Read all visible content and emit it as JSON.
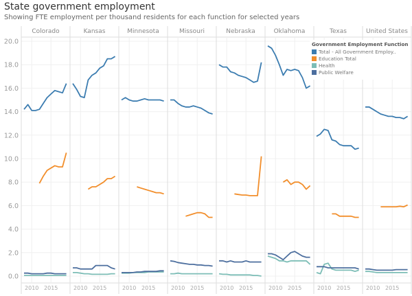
{
  "title": "State government employment",
  "subtitle": "Showing FTE employment per thousand residents  for each function for selected years",
  "chart_data": {
    "type": "line",
    "title": "State government employment",
    "subtitle": "Showing FTE employment per thousand residents  for each function for selected years",
    "panels": [
      "Colorado",
      "Kansas",
      "Minnesota",
      "Missouri",
      "Nebraska",
      "Oklahoma",
      "Texas",
      "United States"
    ],
    "x_tick_labels": [
      "2010",
      "2015"
    ],
    "y_ticks": [
      "0.0",
      "2.0",
      "4.0",
      "6.0",
      "8.0",
      "10.0",
      "12.0",
      "14.0",
      "16.0",
      "18.0",
      "20.0"
    ],
    "ylim": [
      0,
      20
    ],
    "grid": true,
    "legend_title": "Government Employment Function",
    "legend_position": "top-right",
    "years": [
      2008,
      2009,
      2010,
      2011,
      2012,
      2013,
      2014,
      2015,
      2016,
      2017,
      2018,
      2019
    ],
    "series_meta": [
      {
        "key": "total",
        "name": "Total - All Government Employ..",
        "color": "#3b7cb0"
      },
      {
        "key": "education",
        "name": "Education Total",
        "color": "#f28e2b"
      },
      {
        "key": "health",
        "name": "Health",
        "color": "#7cbdb6"
      },
      {
        "key": "welfare",
        "name": "Public Welfare",
        "color": "#4c6e9e"
      }
    ],
    "data": {
      "Colorado": {
        "total": [
          14.2,
          14.6,
          14.1,
          14.1,
          14.2,
          14.7,
          15.2,
          15.5,
          15.8,
          15.7,
          15.6,
          16.4
        ],
        "education": [
          null,
          null,
          null,
          null,
          7.9,
          8.5,
          9.0,
          9.2,
          9.4,
          9.3,
          9.3,
          10.5
        ],
        "health": [
          0.05,
          0.05,
          0.05,
          0.05,
          0.05,
          0.05,
          0.05,
          0.05,
          0.05,
          0.05,
          0.05,
          0.05
        ],
        "welfare": [
          0.25,
          0.25,
          0.2,
          0.2,
          0.2,
          0.2,
          0.25,
          0.25,
          0.2,
          0.2,
          0.2,
          0.2
        ]
      },
      "Kansas": {
        "total": [
          16.4,
          15.9,
          15.3,
          15.2,
          16.7,
          17.1,
          17.3,
          17.7,
          17.9,
          18.5,
          18.5,
          18.7
        ],
        "education": [
          null,
          null,
          null,
          null,
          7.4,
          7.6,
          7.6,
          7.8,
          8.0,
          8.3,
          8.3,
          8.5
        ],
        "health": [
          0.3,
          0.3,
          0.25,
          0.2,
          0.2,
          0.15,
          0.15,
          0.15,
          0.15,
          0.15,
          0.2,
          0.2
        ],
        "welfare": [
          0.7,
          0.7,
          0.6,
          0.6,
          0.6,
          0.6,
          0.9,
          0.9,
          0.9,
          0.9,
          0.7,
          0.6
        ]
      },
      "Minnesota": {
        "total": [
          15.0,
          15.2,
          15.0,
          14.9,
          14.9,
          15.0,
          15.1,
          15.0,
          15.0,
          15.0,
          15.0,
          14.9
        ],
        "education": [
          null,
          null,
          null,
          null,
          7.6,
          7.5,
          7.4,
          7.3,
          7.2,
          7.1,
          7.1,
          7.0
        ],
        "health": [
          0.25,
          0.25,
          0.25,
          0.3,
          0.3,
          0.3,
          0.3,
          0.35,
          0.35,
          0.35,
          0.35,
          0.35
        ],
        "welfare": [
          0.3,
          0.3,
          0.3,
          0.3,
          0.35,
          0.35,
          0.4,
          0.4,
          0.4,
          0.4,
          0.45,
          0.45
        ]
      },
      "Missouri": {
        "total": [
          15.0,
          15.0,
          14.7,
          14.5,
          14.4,
          14.4,
          14.5,
          14.4,
          14.3,
          14.1,
          13.9,
          13.8
        ],
        "education": [
          null,
          null,
          null,
          null,
          5.1,
          5.2,
          5.3,
          5.4,
          5.4,
          5.3,
          5.0,
          5.0
        ],
        "health": [
          0.2,
          0.2,
          0.25,
          0.2,
          0.2,
          0.2,
          0.2,
          0.2,
          0.2,
          0.2,
          0.2,
          0.2
        ],
        "welfare": [
          1.3,
          1.25,
          1.15,
          1.1,
          1.05,
          1.0,
          1.0,
          0.95,
          0.95,
          0.9,
          0.9,
          0.85
        ]
      },
      "Nebraska": {
        "total": [
          18.0,
          17.8,
          17.8,
          17.4,
          17.3,
          17.1,
          17.0,
          16.9,
          16.7,
          16.5,
          16.6,
          18.2
        ],
        "education": [
          null,
          null,
          null,
          null,
          7.0,
          6.95,
          6.9,
          6.9,
          6.85,
          6.85,
          6.85,
          10.2
        ],
        "health": [
          0.2,
          0.15,
          0.15,
          0.1,
          0.1,
          0.1,
          0.1,
          0.1,
          0.1,
          0.05,
          0.05,
          0.0
        ],
        "welfare": [
          1.3,
          1.3,
          1.2,
          1.3,
          1.2,
          1.2,
          1.2,
          1.3,
          1.2,
          1.2,
          1.2,
          1.2
        ]
      },
      "Oklahoma": {
        "total": [
          19.6,
          19.4,
          18.8,
          18.0,
          17.1,
          17.6,
          17.5,
          17.6,
          17.5,
          16.9,
          16.0,
          16.2
        ],
        "education": [
          null,
          null,
          null,
          null,
          8.0,
          8.2,
          7.8,
          8.0,
          8.0,
          7.8,
          7.4,
          7.7
        ],
        "health": [
          1.7,
          1.6,
          1.5,
          1.3,
          1.3,
          1.2,
          1.3,
          1.3,
          1.3,
          1.3,
          1.3,
          1.0
        ],
        "welfare": [
          1.9,
          1.9,
          1.8,
          1.6,
          1.4,
          1.7,
          2.0,
          2.1,
          1.9,
          1.7,
          1.6,
          1.6
        ]
      },
      "Texas": {
        "total": [
          11.9,
          12.1,
          12.5,
          12.4,
          11.6,
          11.5,
          11.2,
          11.1,
          11.1,
          11.1,
          10.8,
          10.9
        ],
        "education": [
          null,
          null,
          null,
          null,
          5.3,
          5.3,
          5.1,
          5.1,
          5.1,
          5.1,
          5.0,
          5.0
        ],
        "health": [
          0.3,
          0.2,
          1.0,
          1.1,
          0.6,
          0.5,
          0.5,
          0.5,
          0.5,
          0.5,
          0.4,
          0.5
        ],
        "welfare": [
          0.8,
          0.8,
          0.8,
          0.7,
          0.7,
          0.7,
          0.7,
          0.7,
          0.7,
          0.7,
          0.7,
          0.6
        ]
      },
      "United States": {
        "total": [
          14.4,
          14.4,
          14.2,
          14.0,
          13.8,
          13.7,
          13.6,
          13.6,
          13.5,
          13.5,
          13.4,
          13.6
        ],
        "education": [
          null,
          null,
          null,
          null,
          5.9,
          5.9,
          5.9,
          5.9,
          5.9,
          5.95,
          5.9,
          6.05
        ],
        "health": [
          0.4,
          0.4,
          0.35,
          0.3,
          0.3,
          0.3,
          0.3,
          0.3,
          0.3,
          0.3,
          0.3,
          0.3
        ],
        "welfare": [
          0.6,
          0.6,
          0.55,
          0.5,
          0.5,
          0.5,
          0.5,
          0.5,
          0.55,
          0.55,
          0.55,
          0.55
        ]
      }
    }
  }
}
